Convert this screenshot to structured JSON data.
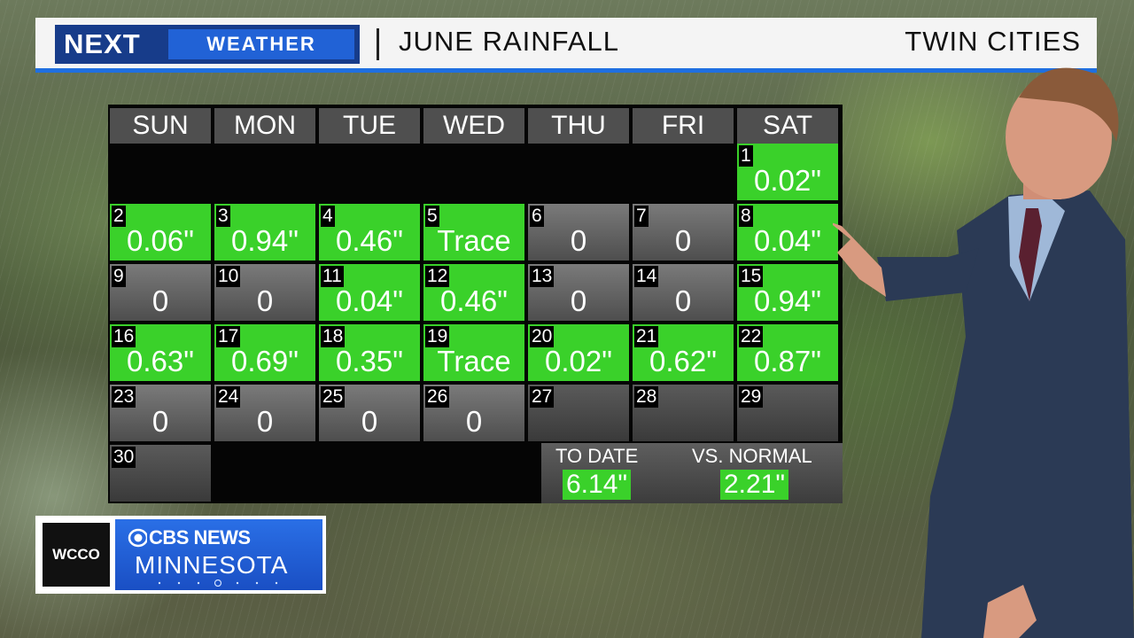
{
  "banner": {
    "logo_next": "NEXT",
    "logo_weather": "WEATHER",
    "title": "JUNE RAINFALL",
    "city": "TWIN CITIES"
  },
  "calendar": {
    "days": [
      "SUN",
      "MON",
      "TUE",
      "WED",
      "THU",
      "FRI",
      "SAT"
    ],
    "cells": [
      {
        "date": "1",
        "value": "0.02\"",
        "style": "green"
      },
      {
        "date": "2",
        "value": "0.06\"",
        "style": "green"
      },
      {
        "date": "3",
        "value": "0.94\"",
        "style": "green"
      },
      {
        "date": "4",
        "value": "0.46\"",
        "style": "green"
      },
      {
        "date": "5",
        "value": "Trace",
        "style": "green"
      },
      {
        "date": "6",
        "value": "0",
        "style": "gray"
      },
      {
        "date": "7",
        "value": "0",
        "style": "gray"
      },
      {
        "date": "8",
        "value": "0.04\"",
        "style": "green"
      },
      {
        "date": "9",
        "value": "0",
        "style": "gray"
      },
      {
        "date": "10",
        "value": "0",
        "style": "gray"
      },
      {
        "date": "11",
        "value": "0.04\"",
        "style": "green"
      },
      {
        "date": "12",
        "value": "0.46\"",
        "style": "green"
      },
      {
        "date": "13",
        "value": "0",
        "style": "gray"
      },
      {
        "date": "14",
        "value": "0",
        "style": "gray"
      },
      {
        "date": "15",
        "value": "0.94\"",
        "style": "green"
      },
      {
        "date": "16",
        "value": "0.63\"",
        "style": "green"
      },
      {
        "date": "17",
        "value": "0.69\"",
        "style": "green"
      },
      {
        "date": "18",
        "value": "0.35\"",
        "style": "green"
      },
      {
        "date": "19",
        "value": "Trace",
        "style": "green"
      },
      {
        "date": "20",
        "value": "0.02\"",
        "style": "green"
      },
      {
        "date": "21",
        "value": "0.62\"",
        "style": "green"
      },
      {
        "date": "22",
        "value": "0.87\"",
        "style": "green"
      },
      {
        "date": "23",
        "value": "0",
        "style": "gray"
      },
      {
        "date": "24",
        "value": "0",
        "style": "gray"
      },
      {
        "date": "25",
        "value": "0",
        "style": "gray"
      },
      {
        "date": "26",
        "value": "0",
        "style": "gray"
      },
      {
        "date": "27",
        "value": "",
        "style": "dark"
      },
      {
        "date": "28",
        "value": "",
        "style": "dark"
      },
      {
        "date": "29",
        "value": "",
        "style": "dark"
      },
      {
        "date": "30",
        "value": "",
        "style": "dark"
      }
    ],
    "first_weekday_index": 6
  },
  "totals": {
    "to_date_label": "TO DATE",
    "to_date_value": "6.14\"",
    "vs_normal_label": "VS. NORMAL",
    "vs_normal_value": "2.21\""
  },
  "station": {
    "call_sign": "WCCO",
    "network": "CBS NEWS",
    "region": "MINNESOTA"
  },
  "colors": {
    "rain_green": "#3ad12a",
    "banner_blue": "#1f6fe0",
    "logo_navy": "#173c8a",
    "cbs_blue": "#2a6fe6"
  }
}
